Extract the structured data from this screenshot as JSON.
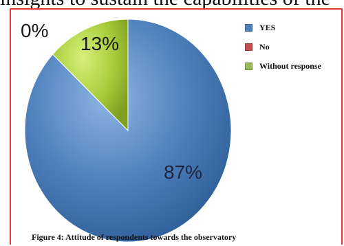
{
  "header_fragment": "insights to sustain the capabilities of the",
  "caption": "Figure 4: Attitude of respondents towards the observatory",
  "chart_data": {
    "type": "pie",
    "slices": [
      {
        "name": "YES",
        "value": 87,
        "label": "87%",
        "color": "#4f81bd"
      },
      {
        "name": "No",
        "value": 0,
        "label": "0%",
        "color": "#c0504d"
      },
      {
        "name": "Without response",
        "value": 13,
        "label": "13%",
        "color": "#9bbb59"
      }
    ],
    "legend_position": "right",
    "legend": [
      "YES",
      "No",
      "Without response"
    ]
  }
}
